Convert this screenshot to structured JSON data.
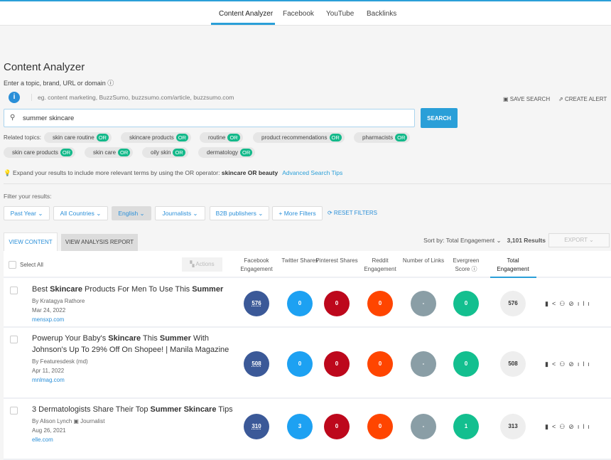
{
  "nav": {
    "tabs": [
      "Content Analyzer",
      "Facebook",
      "YouTube",
      "Backlinks"
    ],
    "active": 0
  },
  "header": {
    "title": "Content Analyzer",
    "subtitle": "Enter a topic, brand, URL or domain ⓘ",
    "hint": "eg. content marketing, BuzzSumo, buzzsumo.com/article, buzzsumo.com",
    "save_search": "SAVE SEARCH",
    "create_alert": "CREATE ALERT"
  },
  "search": {
    "value": "summer skincare",
    "button": "SEARCH"
  },
  "related": {
    "label": "Related topics:",
    "or": "OR",
    "topics": [
      "skin care routine",
      "skincare products",
      "routine",
      "product recommendations",
      "pharmacists",
      "skin care products",
      "skin care",
      "oily skin",
      "dermatology"
    ]
  },
  "tip": {
    "text": "Expand your results to include more relevant terms by using the OR operator:",
    "example": "skincare OR beauty",
    "link": "Advanced Search Tips"
  },
  "filters": {
    "label": "Filter your results:",
    "items": [
      "Past Year ⌄",
      "All Countries ⌄",
      "English ⌄",
      "Journalists ⌄",
      "B2B publishers ⌄",
      "+ More Filters"
    ],
    "selected": 2,
    "reset": "⟳ RESET FILTERS"
  },
  "tabs": {
    "view_content": "VIEW CONTENT",
    "view_report": "VIEW ANALYSIS REPORT"
  },
  "sort": {
    "label": "Sort by: Total Engagement ⌄",
    "results": "3,101 Results",
    "export": "EXPORT ⌄"
  },
  "table": {
    "select_all": "Select All",
    "actions": "Actions",
    "columns": [
      "Facebook Engagement",
      "Twitter Shares",
      "Pinterest Shares",
      "Reddit Engagement",
      "Number of Links",
      "Evergreen Score ⓘ",
      "Total Engagement"
    ],
    "colors": [
      "#3b5998",
      "#1da1f2",
      "#bd081c",
      "#ff4500",
      "#8a9ea6",
      "#13bf8f",
      "#eeeeee"
    ],
    "rows": [
      {
        "title": [
          [
            "Best ",
            false
          ],
          [
            "Skincare",
            true
          ],
          [
            " Products For Men To Use This ",
            false
          ],
          [
            "Summer",
            true
          ]
        ],
        "author": "By  Kratagya Rathore",
        "date": "Mar 24, 2022",
        "domain": "mensxp.com",
        "values": [
          "576",
          "0",
          "0",
          "0",
          "-",
          "0",
          "576"
        ]
      },
      {
        "title": [
          [
            "Powerup Your Baby's ",
            false
          ],
          [
            "Skincare",
            true
          ],
          [
            " This ",
            false
          ],
          [
            "Summer",
            true
          ],
          [
            " With Johnson's Up To 29% Off On Shopee! | Manila Magazine",
            false
          ]
        ],
        "author": "By  Featuresdesk (md)",
        "date": "Apr 11, 2022",
        "domain": "mnlmag.com",
        "values": [
          "508",
          "0",
          "0",
          "0",
          "-",
          "0",
          "508"
        ]
      },
      {
        "title": [
          [
            "3 Dermatologists Share Their Top ",
            false
          ],
          [
            "Summer Skincare",
            true
          ],
          [
            " Tips",
            false
          ]
        ],
        "author": "By Alison Lynch  ▣ Journalist",
        "date": "Aug 26, 2021",
        "domain": "elle.com",
        "values": [
          "310",
          "3",
          "0",
          "0",
          "-",
          "1",
          "313"
        ]
      }
    ],
    "row_icons": "▮<⚇⊘ılı"
  }
}
